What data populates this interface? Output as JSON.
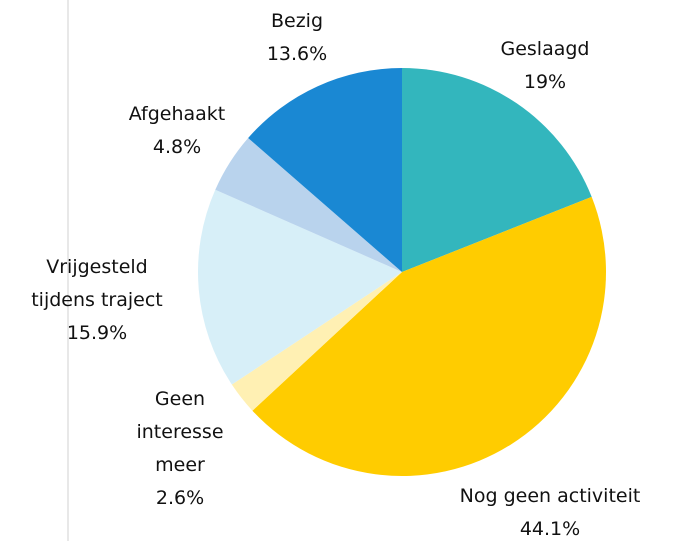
{
  "chart_data": {
    "type": "pie",
    "categories": [
      "Geslaagd",
      "Nog geen activiteit",
      "Geen interesse meer",
      "Vrijgesteld tijdens traject",
      "Afgehaakt",
      "Bezig"
    ],
    "values": [
      19,
      44.1,
      2.6,
      15.9,
      4.8,
      13.6
    ],
    "value_labels": [
      "19%",
      "44.1%",
      "2.6%",
      "15.9%",
      "4.8%",
      "13.6%"
    ],
    "colors": [
      "#33b6bd",
      "#ffcc00",
      "#fff0b3",
      "#d7eff8",
      "#b9d3ed",
      "#1a88d3"
    ]
  }
}
